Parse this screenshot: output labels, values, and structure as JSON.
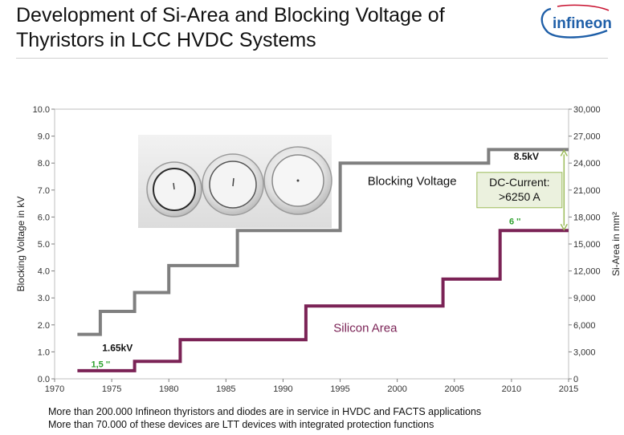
{
  "title_lines": [
    "Development of Si-Area and Blocking Voltage of",
    "Thyristors in LCC HVDC Systems"
  ],
  "logo_text": "infineon",
  "footer_lines": [
    "More than 200.000 Infineon thyristors and diodes are in service in HVDC and FACTS applications",
    "More than 70.000 of these devices are LTT devices with integrated protection functions"
  ],
  "colors": {
    "blocking_voltage": "#7f7f7f",
    "silicon_area": "#7b2356",
    "green_label": "#2ca02c",
    "callout_fill": "#ebf1de",
    "callout_border": "#9bbb59",
    "arrow": "#9bbb59",
    "logo": "#1f5fa8"
  },
  "chart_data": {
    "type": "line",
    "step": true,
    "xlim": [
      1970,
      2015
    ],
    "x_ticks": [
      1970,
      1975,
      1980,
      1985,
      1990,
      1995,
      2000,
      2005,
      2010,
      2015
    ],
    "ylim_left": [
      0,
      10
    ],
    "y_ticks_left": [
      "0.0",
      "1.0",
      "2.0",
      "3.0",
      "4.0",
      "5.0",
      "6.0",
      "7.0",
      "8.0",
      "9.0",
      "10.0"
    ],
    "ylim_right": [
      0,
      30000
    ],
    "y_ticks_right": [
      "0",
      "3,000",
      "6,000",
      "9,000",
      "12,000",
      "15,000",
      "18,000",
      "21,000",
      "24,000",
      "27,000",
      "30,000"
    ],
    "ylabel_left": "Blocking Voltage in kV",
    "ylabel_right": "Si-Area in mm²",
    "series": [
      {
        "name": "Blocking Voltage",
        "axis": "left",
        "points": [
          [
            1972,
            1.65
          ],
          [
            1974,
            1.65
          ],
          [
            1974,
            2.5
          ],
          [
            1977,
            2.5
          ],
          [
            1977,
            3.2
          ],
          [
            1980,
            3.2
          ],
          [
            1980,
            4.2
          ],
          [
            1986,
            4.2
          ],
          [
            1986,
            5.5
          ],
          [
            1995,
            5.5
          ],
          [
            1995,
            8.0
          ],
          [
            2008,
            8.0
          ],
          [
            2008,
            8.5
          ],
          [
            2015,
            8.5
          ]
        ]
      },
      {
        "name": "Silicon Area",
        "axis": "left",
        "points": [
          [
            1972,
            0.3
          ],
          [
            1977,
            0.3
          ],
          [
            1977,
            0.65
          ],
          [
            1981,
            0.65
          ],
          [
            1981,
            1.45
          ],
          [
            1992,
            1.45
          ],
          [
            1992,
            2.7
          ],
          [
            2004,
            2.7
          ],
          [
            2004,
            3.7
          ],
          [
            2009,
            3.7
          ],
          [
            2009,
            5.5
          ],
          [
            2015,
            5.5
          ]
        ]
      }
    ],
    "annotations": [
      {
        "text": "1.65kV",
        "x": 1975.5,
        "y": 1.15
      },
      {
        "text": "1,5 ''",
        "x": 1973.2,
        "y": 0.55
      },
      {
        "text": "8.5kV",
        "x": 2011.3,
        "y": 8.25
      },
      {
        "text": "6 ''",
        "x": 2010.3,
        "y": 5.85
      },
      {
        "text": "Blocking Voltage",
        "x": 2001.3,
        "y": 7.35
      },
      {
        "text": "Silicon Area",
        "x": 1997.2,
        "y": 1.9
      }
    ],
    "callout": {
      "lines": [
        "DC-Current:",
        ">6250 A"
      ],
      "x": 2010.7,
      "y": 7.0
    },
    "arrow": {
      "x": 2014.6,
      "y_from": 5.5,
      "y_to": 8.5
    }
  }
}
